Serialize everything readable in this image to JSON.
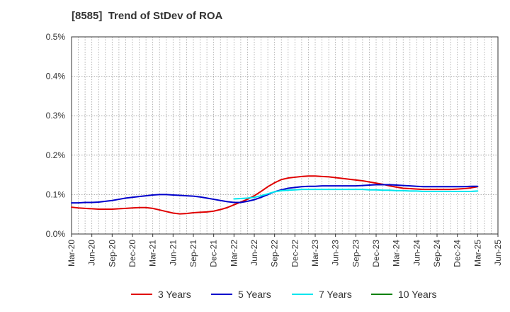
{
  "title": "[8585]  Trend of StDev of ROA",
  "colors": {
    "3y": "#e00000",
    "5y": "#0000cc",
    "7y": "#00e5ee",
    "10y": "#008000",
    "grid": "#999999",
    "axis": "#333333"
  },
  "chart_data": {
    "type": "line",
    "title": "[8585]  Trend of StDev of ROA",
    "xlabel": "",
    "ylabel": "",
    "ylim": [
      0,
      0.5
    ],
    "y_unit": "%",
    "grid": true,
    "legend_position": "bottom",
    "x_ticks": [
      "Mar-20",
      "Jun-20",
      "Sep-20",
      "Dec-20",
      "Mar-21",
      "Jun-21",
      "Sep-21",
      "Dec-21",
      "Mar-22",
      "Jun-22",
      "Sep-22",
      "Dec-22",
      "Mar-23",
      "Jun-23",
      "Sep-23",
      "Dec-23",
      "Mar-24",
      "Jun-24",
      "Sep-24",
      "Dec-24",
      "Mar-25",
      "Jun-25"
    ],
    "y_ticks": [
      "0.0%",
      "0.1%",
      "0.2%",
      "0.3%",
      "0.4%",
      "0.5%"
    ],
    "series": [
      {
        "name": "3 Years",
        "key": "3y",
        "points": [
          [
            "Mar-20",
            0.068
          ],
          [
            "Apr-20",
            0.066
          ],
          [
            "May-20",
            0.065
          ],
          [
            "Jun-20",
            0.064
          ],
          [
            "Jul-20",
            0.063
          ],
          [
            "Aug-20",
            0.063
          ],
          [
            "Sep-20",
            0.063
          ],
          [
            "Oct-20",
            0.064
          ],
          [
            "Nov-20",
            0.065
          ],
          [
            "Dec-20",
            0.066
          ],
          [
            "Jan-21",
            0.067
          ],
          [
            "Feb-21",
            0.067
          ],
          [
            "Mar-21",
            0.065
          ],
          [
            "Apr-21",
            0.061
          ],
          [
            "May-21",
            0.057
          ],
          [
            "Jun-21",
            0.053
          ],
          [
            "Jul-21",
            0.051
          ],
          [
            "Aug-21",
            0.052
          ],
          [
            "Sep-21",
            0.054
          ],
          [
            "Oct-21",
            0.055
          ],
          [
            "Nov-21",
            0.056
          ],
          [
            "Dec-21",
            0.058
          ],
          [
            "Jan-22",
            0.062
          ],
          [
            "Feb-22",
            0.067
          ],
          [
            "Mar-22",
            0.074
          ],
          [
            "Apr-22",
            0.081
          ],
          [
            "May-22",
            0.088
          ],
          [
            "Jun-22",
            0.097
          ],
          [
            "Jul-22",
            0.108
          ],
          [
            "Aug-22",
            0.12
          ],
          [
            "Sep-22",
            0.13
          ],
          [
            "Oct-22",
            0.138
          ],
          [
            "Nov-22",
            0.142
          ],
          [
            "Dec-22",
            0.144
          ],
          [
            "Jan-23",
            0.146
          ],
          [
            "Feb-23",
            0.147
          ],
          [
            "Mar-23",
            0.147
          ],
          [
            "Apr-23",
            0.146
          ],
          [
            "May-23",
            0.145
          ],
          [
            "Jun-23",
            0.143
          ],
          [
            "Jul-23",
            0.141
          ],
          [
            "Aug-23",
            0.139
          ],
          [
            "Sep-23",
            0.137
          ],
          [
            "Oct-23",
            0.135
          ],
          [
            "Nov-23",
            0.132
          ],
          [
            "Dec-23",
            0.129
          ],
          [
            "Jan-24",
            0.126
          ],
          [
            "Feb-24",
            0.122
          ],
          [
            "Mar-24",
            0.119
          ],
          [
            "Apr-24",
            0.116
          ],
          [
            "May-24",
            0.115
          ],
          [
            "Jun-24",
            0.114
          ],
          [
            "Jul-24",
            0.113
          ],
          [
            "Aug-24",
            0.113
          ],
          [
            "Sep-24",
            0.113
          ],
          [
            "Oct-24",
            0.113
          ],
          [
            "Nov-24",
            0.113
          ],
          [
            "Dec-24",
            0.114
          ],
          [
            "Jan-25",
            0.115
          ],
          [
            "Feb-25",
            0.117
          ],
          [
            "Mar-25",
            0.12
          ]
        ]
      },
      {
        "name": "5 Years",
        "key": "5y",
        "points": [
          [
            "Mar-20",
            0.079
          ],
          [
            "Apr-20",
            0.079
          ],
          [
            "May-20",
            0.08
          ],
          [
            "Jun-20",
            0.08
          ],
          [
            "Jul-20",
            0.081
          ],
          [
            "Aug-20",
            0.083
          ],
          [
            "Sep-20",
            0.085
          ],
          [
            "Oct-20",
            0.088
          ],
          [
            "Nov-20",
            0.091
          ],
          [
            "Dec-20",
            0.093
          ],
          [
            "Jan-21",
            0.095
          ],
          [
            "Feb-21",
            0.097
          ],
          [
            "Mar-21",
            0.099
          ],
          [
            "Apr-21",
            0.1
          ],
          [
            "May-21",
            0.1
          ],
          [
            "Jun-21",
            0.099
          ],
          [
            "Jul-21",
            0.098
          ],
          [
            "Aug-21",
            0.097
          ],
          [
            "Sep-21",
            0.096
          ],
          [
            "Oct-21",
            0.094
          ],
          [
            "Nov-21",
            0.091
          ],
          [
            "Dec-21",
            0.088
          ],
          [
            "Jan-22",
            0.085
          ],
          [
            "Feb-22",
            0.082
          ],
          [
            "Mar-22",
            0.08
          ],
          [
            "Apr-22",
            0.08
          ],
          [
            "May-22",
            0.083
          ],
          [
            "Jun-22",
            0.087
          ],
          [
            "Jul-22",
            0.093
          ],
          [
            "Aug-22",
            0.1
          ],
          [
            "Sep-22",
            0.107
          ],
          [
            "Oct-22",
            0.112
          ],
          [
            "Nov-22",
            0.116
          ],
          [
            "Dec-22",
            0.118
          ],
          [
            "Jan-23",
            0.12
          ],
          [
            "Feb-23",
            0.121
          ],
          [
            "Mar-23",
            0.121
          ],
          [
            "Apr-23",
            0.122
          ],
          [
            "May-23",
            0.122
          ],
          [
            "Jun-23",
            0.122
          ],
          [
            "Jul-23",
            0.122
          ],
          [
            "Aug-23",
            0.122
          ],
          [
            "Sep-23",
            0.122
          ],
          [
            "Oct-23",
            0.123
          ],
          [
            "Nov-23",
            0.124
          ],
          [
            "Dec-23",
            0.125
          ],
          [
            "Jan-24",
            0.125
          ],
          [
            "Feb-24",
            0.125
          ],
          [
            "Mar-24",
            0.124
          ],
          [
            "Apr-24",
            0.123
          ],
          [
            "May-24",
            0.122
          ],
          [
            "Jun-24",
            0.121
          ],
          [
            "Jul-24",
            0.12
          ],
          [
            "Aug-24",
            0.12
          ],
          [
            "Sep-24",
            0.12
          ],
          [
            "Oct-24",
            0.12
          ],
          [
            "Nov-24",
            0.12
          ],
          [
            "Dec-24",
            0.12
          ],
          [
            "Jan-25",
            0.12
          ],
          [
            "Feb-25",
            0.121
          ],
          [
            "Mar-25",
            0.121
          ]
        ]
      },
      {
        "name": "7 Years",
        "key": "7y",
        "points": [
          [
            "Mar-22",
            0.089
          ],
          [
            "Apr-22",
            0.09
          ],
          [
            "May-22",
            0.091
          ],
          [
            "Jun-22",
            0.093
          ],
          [
            "Jul-22",
            0.097
          ],
          [
            "Aug-22",
            0.102
          ],
          [
            "Sep-22",
            0.107
          ],
          [
            "Oct-22",
            0.11
          ],
          [
            "Nov-22",
            0.111
          ],
          [
            "Dec-22",
            0.112
          ],
          [
            "Jan-23",
            0.113
          ],
          [
            "Feb-23",
            0.113
          ],
          [
            "Mar-23",
            0.113
          ],
          [
            "Apr-23",
            0.113
          ],
          [
            "May-23",
            0.113
          ],
          [
            "Jun-23",
            0.113
          ],
          [
            "Jul-23",
            0.113
          ],
          [
            "Aug-23",
            0.113
          ],
          [
            "Sep-23",
            0.113
          ],
          [
            "Oct-23",
            0.113
          ],
          [
            "Nov-23",
            0.112
          ],
          [
            "Dec-23",
            0.112
          ],
          [
            "Jan-24",
            0.111
          ],
          [
            "Feb-24",
            0.111
          ],
          [
            "Mar-24",
            0.11
          ],
          [
            "Apr-24",
            0.11
          ],
          [
            "May-24",
            0.109
          ],
          [
            "Jun-24",
            0.109
          ],
          [
            "Jul-24",
            0.108
          ],
          [
            "Aug-24",
            0.108
          ],
          [
            "Sep-24",
            0.108
          ],
          [
            "Oct-24",
            0.108
          ],
          [
            "Nov-24",
            0.108
          ],
          [
            "Dec-24",
            0.108
          ],
          [
            "Jan-25",
            0.108
          ],
          [
            "Feb-25",
            0.108
          ],
          [
            "Mar-25",
            0.109
          ]
        ]
      },
      {
        "name": "10 Years",
        "key": "10y",
        "points": []
      }
    ]
  }
}
